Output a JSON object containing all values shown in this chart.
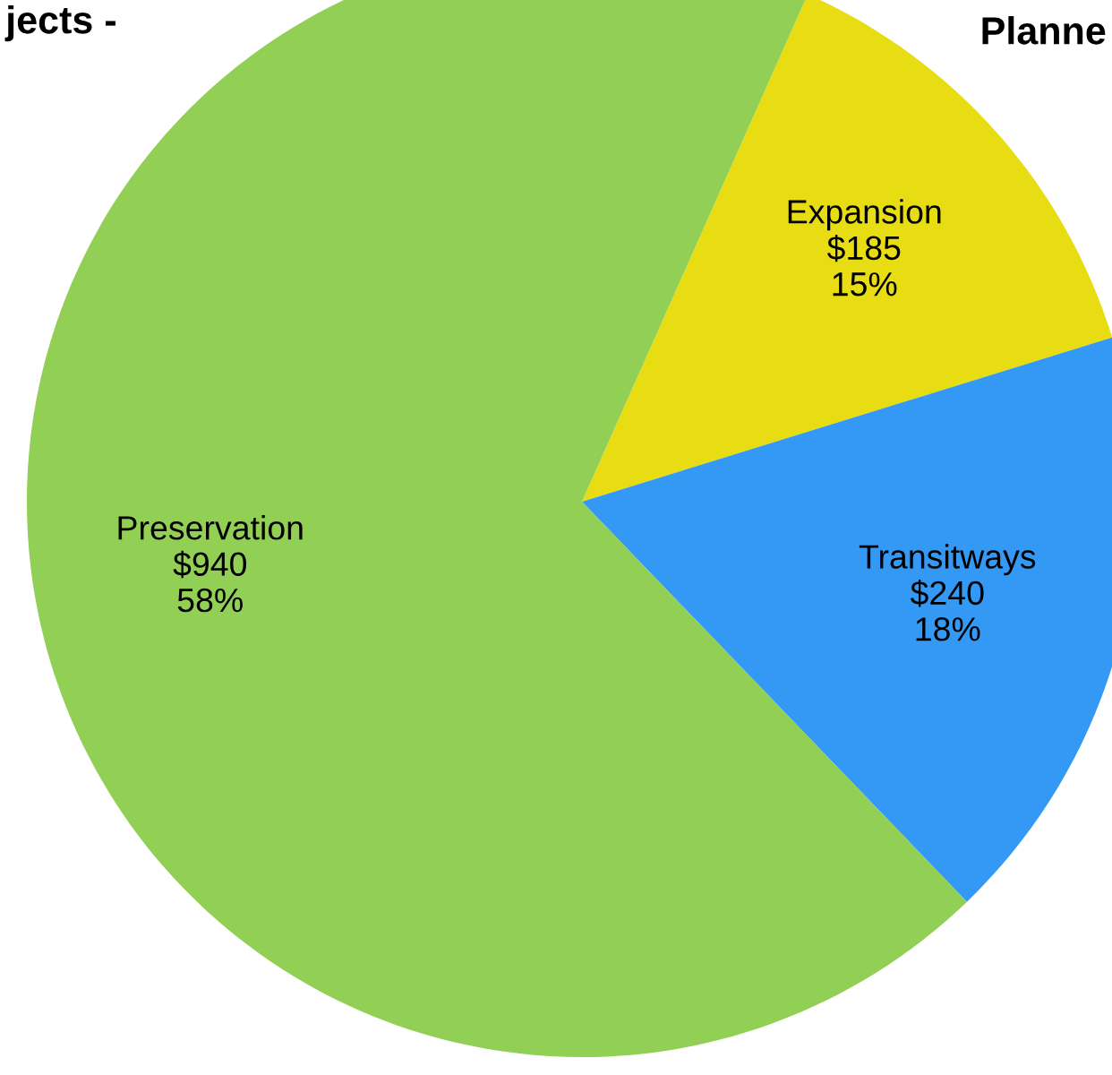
{
  "chart_data": {
    "type": "pie",
    "categories": [
      "Expansion",
      "Transitways",
      "Preservation"
    ],
    "values": [
      185,
      240,
      940
    ],
    "colors": [
      "#e8dc12",
      "#3399f5",
      "#92cf55"
    ],
    "value_labels": [
      "$185\n15%",
      "$240\n18%",
      "$940\n58%"
    ],
    "annotations": [
      "jects -",
      "Planne"
    ]
  }
}
